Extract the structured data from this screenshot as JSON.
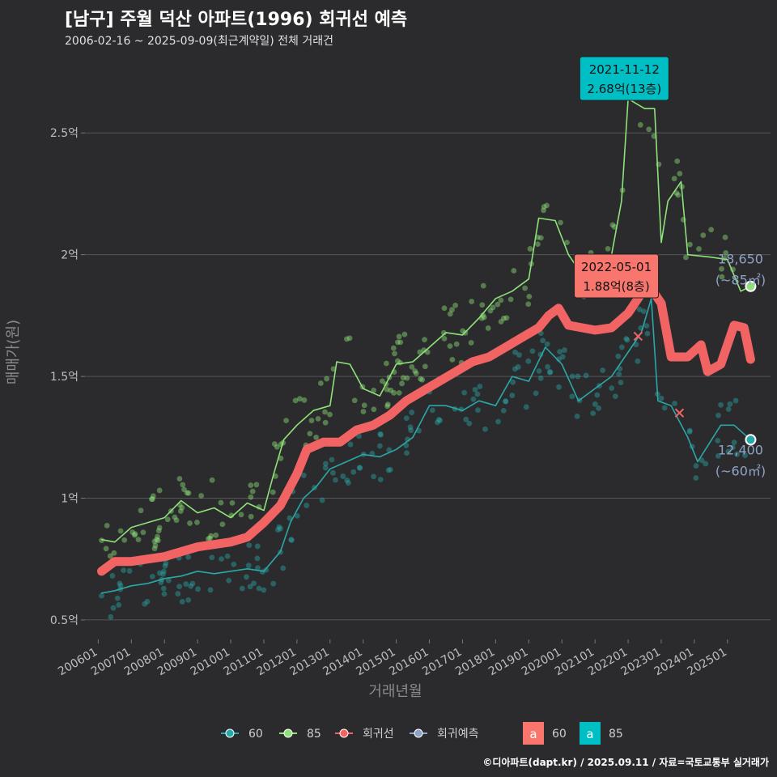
{
  "title": "[남구] 주월 덕산 아파트(1996) 회귀선 예측",
  "subtitle": "2006-02-16 ~ 2025-09-09(최근계약일) 전체 거래건",
  "footer": "©디아파트(dapt.kr) / 2025.09.11 / 자료=국토교통부 실거래가",
  "colors": {
    "s60": "#2aa7a7",
    "s85": "#8fe27a",
    "reg": "#f26464",
    "pred": "#8fa3c7",
    "bg": "#2b2b2d",
    "grid": "#555558"
  },
  "chart_data": {
    "type": "line",
    "xlabel": "거래년월",
    "ylabel": "매매가(원)",
    "x_ticks": [
      "200601",
      "200701",
      "200801",
      "200901",
      "201001",
      "201101",
      "201201",
      "201301",
      "201401",
      "201501",
      "201601",
      "201701",
      "201801",
      "201901",
      "202001",
      "202101",
      "202201",
      "202301",
      "202401",
      "202501"
    ],
    "y_ticks": [
      "0.5억",
      "1억",
      "1.5억",
      "2억",
      "2.5억"
    ],
    "y_tick_values": [
      0.5,
      1.0,
      1.5,
      2.0,
      2.5
    ],
    "ylim": [
      0.42,
      2.78
    ],
    "xlim": [
      2005.6,
      2026.3
    ],
    "grid": true,
    "legend_position": "bottom",
    "legend": [
      "60",
      "85",
      "회귀선",
      "회귀예측"
    ],
    "legend_boxes": [
      {
        "letter": "a",
        "label": "60",
        "color": "#f8766d"
      },
      {
        "letter": "a",
        "label": "85",
        "color": "#00bfc4"
      }
    ],
    "series": [
      {
        "name": "85",
        "color": "#8fe27a",
        "points": [
          [
            2006.1,
            0.83
          ],
          [
            2006.5,
            0.82
          ],
          [
            2007.0,
            0.88
          ],
          [
            2007.5,
            0.9
          ],
          [
            2008.0,
            0.92
          ],
          [
            2008.5,
            0.99
          ],
          [
            2009.0,
            0.94
          ],
          [
            2009.5,
            0.96
          ],
          [
            2010.0,
            0.92
          ],
          [
            2010.5,
            0.98
          ],
          [
            2011.0,
            0.95
          ],
          [
            2011.3,
            1.1
          ],
          [
            2011.6,
            1.24
          ],
          [
            2012.0,
            1.3
          ],
          [
            2012.5,
            1.36
          ],
          [
            2013.0,
            1.38
          ],
          [
            2013.2,
            1.56
          ],
          [
            2013.6,
            1.55
          ],
          [
            2014.0,
            1.45
          ],
          [
            2014.5,
            1.42
          ],
          [
            2015.0,
            1.55
          ],
          [
            2015.5,
            1.56
          ],
          [
            2016.0,
            1.62
          ],
          [
            2016.5,
            1.68
          ],
          [
            2017.0,
            1.67
          ],
          [
            2017.5,
            1.74
          ],
          [
            2018.0,
            1.82
          ],
          [
            2018.5,
            1.85
          ],
          [
            2019.0,
            1.9
          ],
          [
            2019.3,
            2.15
          ],
          [
            2019.8,
            2.14
          ],
          [
            2020.2,
            2.0
          ],
          [
            2020.6,
            1.92
          ],
          [
            2021.0,
            1.9
          ],
          [
            2021.5,
            2.0
          ],
          [
            2021.8,
            2.22
          ],
          [
            2022.0,
            2.64
          ],
          [
            2022.5,
            2.6
          ],
          [
            2022.8,
            2.6
          ],
          [
            2023.0,
            2.05
          ],
          [
            2023.2,
            2.22
          ],
          [
            2023.6,
            2.3
          ],
          [
            2023.8,
            2.0
          ],
          [
            2024.5,
            1.99
          ],
          [
            2025.0,
            1.98
          ],
          [
            2025.4,
            1.85
          ],
          [
            2025.7,
            1.87
          ]
        ]
      },
      {
        "name": "60",
        "color": "#2aa7a7",
        "points": [
          [
            2006.1,
            0.61
          ],
          [
            2006.5,
            0.62
          ],
          [
            2007.0,
            0.64
          ],
          [
            2007.5,
            0.65
          ],
          [
            2008.0,
            0.67
          ],
          [
            2008.5,
            0.68
          ],
          [
            2009.0,
            0.7
          ],
          [
            2009.5,
            0.69
          ],
          [
            2010.0,
            0.7
          ],
          [
            2010.5,
            0.71
          ],
          [
            2011.0,
            0.7
          ],
          [
            2011.5,
            0.78
          ],
          [
            2011.8,
            0.9
          ],
          [
            2012.2,
            1.0
          ],
          [
            2012.6,
            1.05
          ],
          [
            2013.0,
            1.12
          ],
          [
            2013.5,
            1.15
          ],
          [
            2014.0,
            1.18
          ],
          [
            2014.5,
            1.17
          ],
          [
            2015.0,
            1.2
          ],
          [
            2015.5,
            1.25
          ],
          [
            2016.0,
            1.38
          ],
          [
            2016.5,
            1.38
          ],
          [
            2017.0,
            1.36
          ],
          [
            2017.5,
            1.4
          ],
          [
            2018.0,
            1.38
          ],
          [
            2018.5,
            1.5
          ],
          [
            2019.0,
            1.48
          ],
          [
            2019.5,
            1.62
          ],
          [
            2020.0,
            1.55
          ],
          [
            2020.5,
            1.4
          ],
          [
            2021.0,
            1.45
          ],
          [
            2021.5,
            1.5
          ],
          [
            2022.0,
            1.6
          ],
          [
            2022.4,
            1.68
          ],
          [
            2022.7,
            1.82
          ],
          [
            2022.9,
            1.4
          ],
          [
            2023.3,
            1.38
          ],
          [
            2023.8,
            1.25
          ],
          [
            2024.1,
            1.15
          ],
          [
            2024.8,
            1.3
          ],
          [
            2025.2,
            1.3
          ],
          [
            2025.7,
            1.24
          ]
        ]
      },
      {
        "name": "회귀선",
        "color": "#f26464",
        "points": [
          [
            2006.1,
            0.7
          ],
          [
            2006.5,
            0.74
          ],
          [
            2007.0,
            0.74
          ],
          [
            2007.5,
            0.75
          ],
          [
            2008.0,
            0.76
          ],
          [
            2008.5,
            0.78
          ],
          [
            2009.0,
            0.8
          ],
          [
            2009.5,
            0.81
          ],
          [
            2010.0,
            0.82
          ],
          [
            2010.5,
            0.84
          ],
          [
            2011.0,
            0.9
          ],
          [
            2011.5,
            0.97
          ],
          [
            2012.0,
            1.1
          ],
          [
            2012.3,
            1.2
          ],
          [
            2012.8,
            1.23
          ],
          [
            2013.3,
            1.23
          ],
          [
            2013.8,
            1.28
          ],
          [
            2014.3,
            1.3
          ],
          [
            2014.8,
            1.34
          ],
          [
            2015.3,
            1.4
          ],
          [
            2015.8,
            1.44
          ],
          [
            2016.3,
            1.48
          ],
          [
            2016.8,
            1.52
          ],
          [
            2017.3,
            1.56
          ],
          [
            2017.8,
            1.58
          ],
          [
            2018.3,
            1.62
          ],
          [
            2018.8,
            1.66
          ],
          [
            2019.3,
            1.7
          ],
          [
            2019.6,
            1.75
          ],
          [
            2019.9,
            1.78
          ],
          [
            2020.2,
            1.71
          ],
          [
            2020.6,
            1.7
          ],
          [
            2021.0,
            1.69
          ],
          [
            2021.5,
            1.7
          ],
          [
            2022.0,
            1.76
          ],
          [
            2022.3,
            1.82
          ],
          [
            2022.6,
            1.88
          ],
          [
            2023.0,
            1.8
          ],
          [
            2023.3,
            1.58
          ],
          [
            2023.8,
            1.58
          ],
          [
            2024.2,
            1.63
          ],
          [
            2024.4,
            1.52
          ],
          [
            2024.8,
            1.55
          ],
          [
            2025.2,
            1.71
          ],
          [
            2025.5,
            1.7
          ],
          [
            2025.7,
            1.57
          ]
        ]
      }
    ],
    "highlights": [
      {
        "date": "2021-11-12",
        "label": "2.68억(13층)",
        "x": 2021.86,
        "y": 2.68,
        "color": "#00bfc4"
      },
      {
        "date": "2022-05-01",
        "label": "1.88억(8층)",
        "x": 2022.33,
        "y": 1.88,
        "color": "#f8766d"
      }
    ],
    "end_labels": [
      {
        "value": "18,650",
        "area": "(~85㎡)",
        "y": 1.865
      },
      {
        "value": "12,400",
        "area": "(~60㎡)",
        "y": 1.24
      }
    ]
  }
}
